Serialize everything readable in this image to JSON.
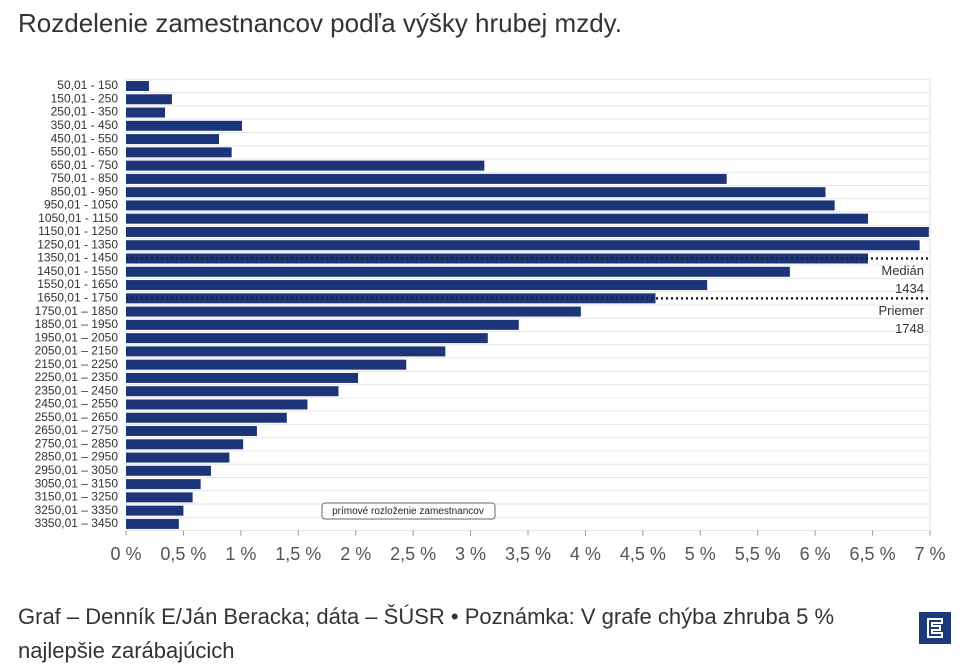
{
  "chart_data": {
    "type": "bar",
    "orientation": "horizontal",
    "title": "Rozdelenie zamestnancov podľa výšky hrubej mzdy.",
    "footer": "Graf – Denník E/Ján Beracka; dáta – ŠÚSR • Poznámka: V grafe chýba zhruba 5 % najlepšie zarábajúcich",
    "categories": [
      "50,01 - 150",
      "150,01 - 250",
      "250,01 - 350",
      "350,01 - 450",
      "450,01 - 550",
      "550,01 - 650",
      "650,01 - 750",
      "750,01 - 850",
      "850,01 - 950",
      "950,01 - 1050",
      "1050,01 - 1150",
      "1150,01 - 1250",
      "1250,01 - 1350",
      "1350,01 - 1450",
      "1450,01 - 1550",
      "1550,01 - 1650",
      "1650,01 - 1750",
      "1750,01 – 1850",
      "1850,01 – 1950",
      "1950,01 – 2050",
      "2050,01 – 2150",
      "2150,01 – 2250",
      "2250,01 – 2350",
      "2350,01 – 2450",
      "2450,01 – 2550",
      "2550,01 – 2650",
      "2650,01 – 2750",
      "2750,01 – 2850",
      "2850,01 – 2950",
      "2950,01 – 3050",
      "3050,01 – 3150",
      "3150,01 – 3250",
      "3250,01 – 3350",
      "3350,01 – 3450"
    ],
    "series": [
      {
        "name": "prímové rozloženie zamestnancov",
        "color": "#1c3578",
        "values": [
          0.2,
          0.4,
          0.34,
          1.01,
          0.81,
          0.92,
          3.12,
          5.23,
          6.09,
          6.17,
          6.46,
          6.99,
          6.91,
          6.46,
          5.78,
          5.06,
          4.61,
          3.96,
          3.42,
          3.15,
          2.78,
          2.44,
          2.02,
          1.85,
          1.58,
          1.4,
          1.14,
          1.02,
          0.9,
          0.74,
          0.65,
          0.58,
          0.5,
          0.46
        ]
      }
    ],
    "xlim": [
      0,
      7
    ],
    "xticks": [
      {
        "value": 0,
        "label": "0 %"
      },
      {
        "value": 0.5,
        "label": "0,5 %"
      },
      {
        "value": 1,
        "label": "1 %"
      },
      {
        "value": 1.5,
        "label": "1,5 %"
      },
      {
        "value": 2,
        "label": "2 %"
      },
      {
        "value": 2.5,
        "label": "2,5 %"
      },
      {
        "value": 3,
        "label": "3 %"
      },
      {
        "value": 3.5,
        "label": "3,5 %"
      },
      {
        "value": 4,
        "label": "4 %"
      },
      {
        "value": 4.5,
        "label": "4,5 %"
      },
      {
        "value": 5,
        "label": "5 %"
      },
      {
        "value": 5.5,
        "label": "5,5 %"
      },
      {
        "value": 6,
        "label": "6 %"
      },
      {
        "value": 6.5,
        "label": "6,5 %"
      },
      {
        "value": 7,
        "label": "7 %"
      }
    ],
    "reference_lines": [
      {
        "label": "Medián",
        "value": 1434
      },
      {
        "label": "Priemer",
        "value": 1748
      }
    ]
  }
}
